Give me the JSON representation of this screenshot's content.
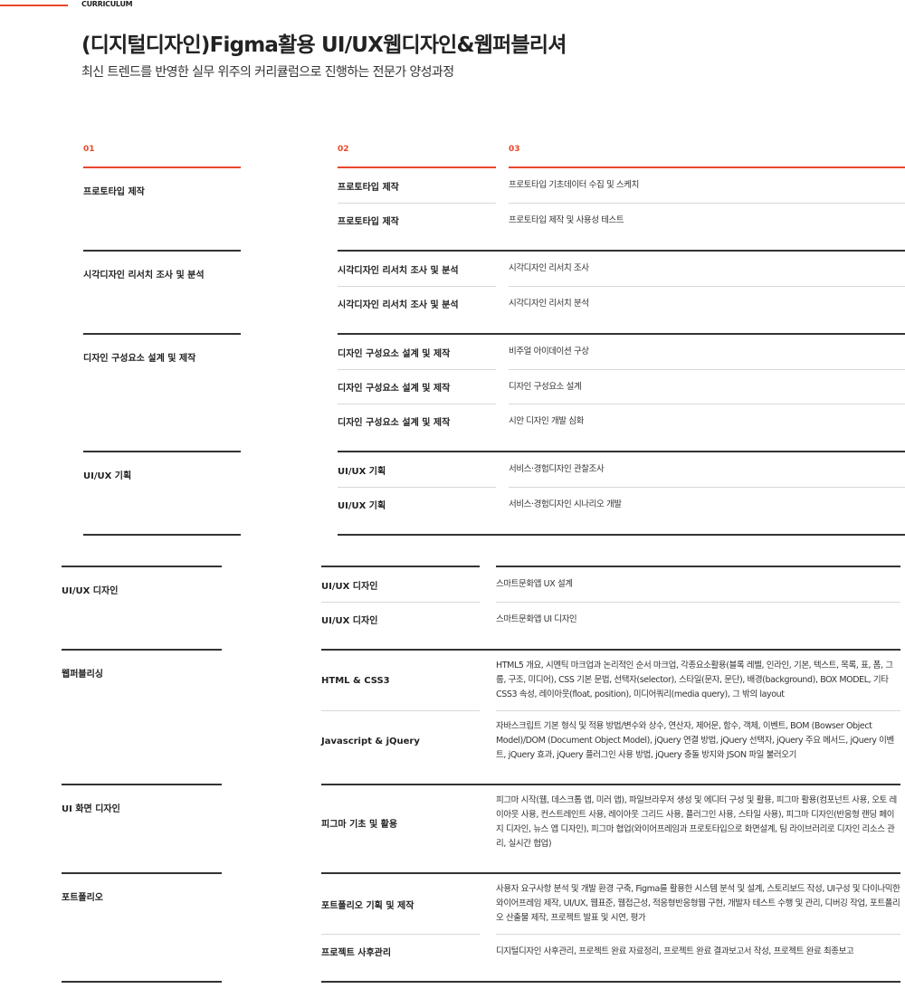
{
  "header": {
    "label": "CURRICULUM",
    "title": "(디지털디자인)Figma활용 UI/UX웹디자인&웹퍼블리셔",
    "subtitle": "최신 트렌드를 반영한 실무 위주의 커리큘럼으로 진행하는 전문가 양성과정"
  },
  "columns": [
    "01",
    "02",
    "03"
  ],
  "sections": [
    {
      "groups": [
        {
          "title": "프로토타입 제작",
          "rows": [
            {
              "module": "프로토타입 제작",
              "content": "프로토타입 기초데이터 수집 및 스케치"
            },
            {
              "module": "프로토타입 제작",
              "content": "프로토타입 제작 및 사용성 테스트"
            }
          ]
        },
        {
          "title": "시각디자인 리서치 조사 및 분석",
          "rows": [
            {
              "module": "시각디자인 리서치 조사 및 분석",
              "content": "시각디자인 리서치 조사"
            },
            {
              "module": "시각디자인 리서치 조사 및 분석",
              "content": "시각디자인 리서치 분석"
            }
          ]
        },
        {
          "title": "디자인 구성요소 설계 및 제작",
          "rows": [
            {
              "module": "디자인 구성요소 설계 및 제작",
              "content": "비주얼 아이데이션 구상"
            },
            {
              "module": "디자인 구성요소 설계 및 제작",
              "content": "디자인 구성요소 설계"
            },
            {
              "module": "디자인 구성요소 설계 및 제작",
              "content": "시안 디자인 개발 심화"
            }
          ]
        },
        {
          "title": "UI/UX 기획",
          "rows": [
            {
              "module": "UI/UX 기획",
              "content": "서비스·경험디자인 관찰조사"
            },
            {
              "module": "UI/UX 기획",
              "content": "서비스·경험디자인 시나리오 개발"
            }
          ]
        }
      ]
    },
    {
      "groups": [
        {
          "title": "UI/UX 디자인",
          "rows": [
            {
              "module": "UI/UX 디자인",
              "content": "스마트문화앱 UX 설계"
            },
            {
              "module": "UI/UX 디자인",
              "content": "스마트문화앱 UI 디자인"
            }
          ]
        },
        {
          "title": "웹퍼블리싱",
          "rows": [
            {
              "module": "HTML & CSS3",
              "content": "HTML5 개요, 시멘틱 마크업과 논리적인 순서 마크업, 각종요소활용(블록 레벨, 인라인, 기본, 텍스트, 목록, 표, 폼, 그룹, 구조, 미디어), CSS 기본 문법, 선택자(selector), 스타일(문자, 문단), 배경(background), BOX MODEL, 기타 CSS3 속성, 레이아웃(float, position), 미디어쿼리(media query), 그 밖의 layout"
            },
            {
              "module": "Javascript & jQuery",
              "content": "자바스크립트 기본 형식 및 적용 방법/변수와 상수, 연산자, 제어문, 함수, 객체, 이벤트, BOM (Bowser Object Model)/DOM (Document Object Model), jQuery 연결 방법, jQuery 선택자, jQuery 주요 메서드, jQuery 이벤트, jQuery 효과, jQuery 플러그인 사용 방법, jQuery 충돌 방지와 JSON 파일 불러오기"
            }
          ]
        },
        {
          "title": "UI 화면 디자인",
          "rows": [
            {
              "module": "피그마 기초 및 활용",
              "content": "피그마 시작(웹, 데스크톱 앱, 미러 앱), 파일브라우저 생성 및 에디터 구성 및 활용, 피그마 활용(컴포넌트 사용, 오토 레이아웃 사용, 컨스트레인트 사용, 레이아웃 그리드 사용, 플러그인 사용, 스타일 사용), 피그마 디자인(반응형 랜딩 페이지 디자인, 뉴스 앱 디자인), 피그마 협업(와이어프레임과 프로토타입으로 화면설계, 팀 라이브러리로 디자인 리소스 관리, 실시간 협업)"
            }
          ]
        },
        {
          "title": "포트폴리오",
          "rows": [
            {
              "module": "포트폴리오 기획 및 제작",
              "content": "사용자 요구사항 분석 및 개발 환경 구축, Figma를 활용한 시스템 분석 및 설계, 스토리보드 작성, UI구성 및 다이나믹한 와이어프레임 제작, UI/UX, 웹표준, 웹접근성, 적응형반응형웹 구현, 개발자 테스트 수행 및 관리, 디버깅 작업, 포트폴리오 산출물 제작, 프로젝트 발표 및 시연, 평가"
            },
            {
              "module": "프로젝트 사후관리",
              "content": "디지털디자인 사후관리, 프로젝트 완료 자료정리, 프로젝트 완료 결과보고서 작성, 프로젝트 완료 최종보고"
            }
          ]
        }
      ]
    }
  ]
}
